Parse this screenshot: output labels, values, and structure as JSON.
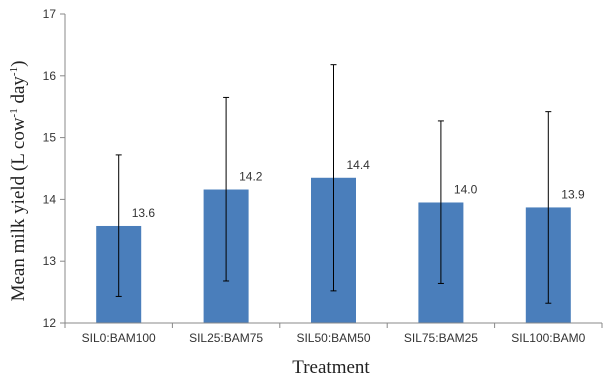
{
  "chart_data": {
    "type": "bar",
    "categories": [
      "SIL0:BAM100",
      "SIL25:BAM75",
      "SIL50:BAM50",
      "SIL75:BAM25",
      "SIL100:BAM0"
    ],
    "values": [
      13.57,
      14.16,
      14.35,
      13.95,
      13.87
    ],
    "data_labels": [
      "13.6",
      "14.2",
      "14.4",
      "14.0",
      "13.9"
    ],
    "error_bars": [
      {
        "low": 12.43,
        "high": 14.72
      },
      {
        "low": 12.68,
        "high": 15.65
      },
      {
        "low": 12.52,
        "high": 16.18
      },
      {
        "low": 12.64,
        "high": 15.27
      },
      {
        "low": 12.32,
        "high": 15.42
      }
    ],
    "xlabel": "Treatment",
    "ylabel": {
      "base": "Mean milk yield (L cow",
      "sup1": "-1",
      "mid": " day",
      "sup2": "-1",
      "end": ")"
    },
    "ylim": [
      12,
      17
    ],
    "yticks": [
      "12",
      "13",
      "14",
      "15",
      "16",
      "17"
    ],
    "grid": false,
    "colors": {
      "bar": "#4a7ebb",
      "axis": "#888888",
      "error": "#000000"
    }
  }
}
